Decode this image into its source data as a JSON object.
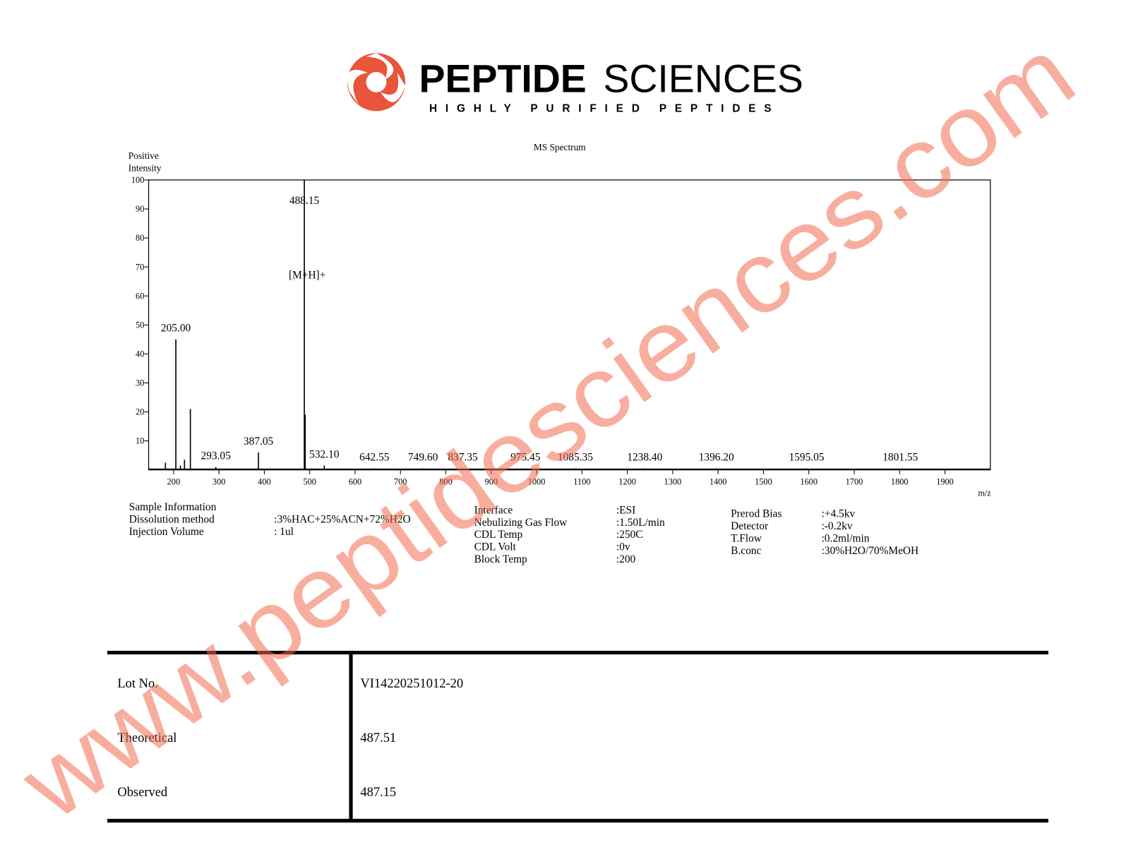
{
  "header": {
    "brand_bold": "PEPTIDE",
    "brand_light": "SCIENCES",
    "tagline": "HIGHLY PURIFIED PEPTIDES"
  },
  "chart_data": {
    "type": "stem",
    "title": "MS Spectrum",
    "y_label_lines": [
      "Positive",
      "Intensity"
    ],
    "x_label": "m/z",
    "x": [
      182,
      205,
      215,
      224,
      237,
      293.05,
      387.05,
      488.15,
      490,
      532.1,
      642.55,
      749.6,
      837.35,
      975.45,
      1085.35,
      1238.4,
      1396.2,
      1595.05,
      1801.55
    ],
    "values": [
      2.5,
      45,
      1.5,
      3.5,
      21,
      1,
      6,
      100,
      19,
      1.5,
      0.5,
      0.5,
      0.5,
      0.5,
      0.5,
      0.5,
      0.5,
      0.5,
      0.5
    ],
    "peak_labels": [
      null,
      "205.00",
      null,
      null,
      null,
      "293.05",
      "387.05",
      "488.15",
      null,
      "532.10",
      "642.55",
      "749.60",
      "837.35",
      "975.45",
      "1085.35",
      "1238.40",
      "1396.20",
      "1595.05",
      "1801.55"
    ],
    "annotation": "[M+H]+",
    "color": "#000000",
    "xlim": [
      145,
      2000
    ],
    "ylim": [
      0,
      100
    ],
    "xticks": [
      200,
      300,
      400,
      500,
      600,
      700,
      800,
      900,
      1000,
      1100,
      1200,
      1300,
      1400,
      1500,
      1600,
      1700,
      1800,
      1900
    ],
    "yticks": [
      10,
      20,
      30,
      40,
      50,
      60,
      70,
      80,
      90,
      100
    ]
  },
  "sample_info": {
    "col1": [
      [
        "Sample Information",
        null
      ],
      [
        "Dissolution method",
        ":3%HAC+25%ACN+72%H2O"
      ],
      [
        "Injection Volume",
        ": 1ul"
      ]
    ],
    "col2": [
      [
        "Interface",
        ":ESI"
      ],
      [
        "Nebulizing Gas Flow",
        ":1.50L/min"
      ],
      [
        "CDL Temp",
        ":250C"
      ],
      [
        "CDL Volt",
        ":0v"
      ],
      [
        "Block Temp",
        ":200"
      ]
    ],
    "col3": [
      [
        "Prerod Bias",
        ":+4.5kv"
      ],
      [
        "Detector",
        ":-0.2kv"
      ],
      [
        "T.Flow",
        ":0.2ml/min"
      ],
      [
        "B.conc",
        ":30%H2O/70%MeOH"
      ]
    ]
  },
  "table": {
    "rows": [
      [
        "Lot No.",
        "VI14220251012-20"
      ],
      [
        "Theoretical",
        "487.51"
      ],
      [
        "Observed",
        "487.15"
      ]
    ]
  },
  "watermark": "www.peptidesciences.com"
}
